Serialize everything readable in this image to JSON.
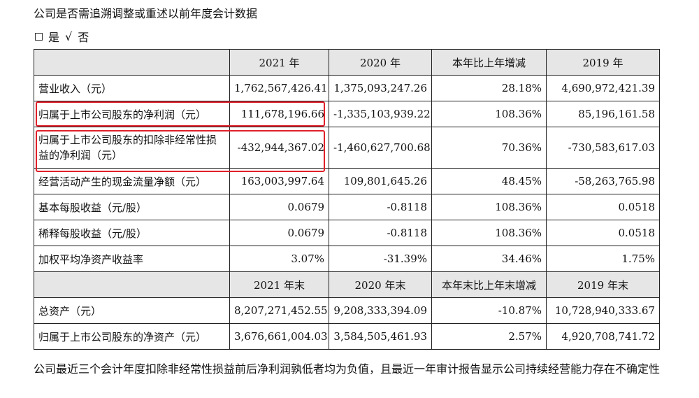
{
  "intro_text": "公司是否需追溯调整或重述以前年度会计数据",
  "choice": {
    "yes": "是",
    "check": "√",
    "no": "否"
  },
  "table": {
    "header1": [
      "",
      "2021 年",
      "2020 年",
      "本年比上年增减",
      "2019 年"
    ],
    "rows1": [
      [
        "营业收入（元）",
        "1,762,567,426.41",
        "1,375,093,247.26",
        "28.18%",
        "4,690,972,421.39"
      ],
      [
        "归属于上市公司股东的净利润（元）",
        "111,678,196.66",
        "-1,335,103,939.22",
        "108.36%",
        "85,196,161.58"
      ],
      [
        "归属于上市公司股东的扣除非经常性损益的净利润（元）",
        "-432,944,367.02",
        "-1,460,627,700.68",
        "70.36%",
        "-730,583,617.03"
      ],
      [
        "经营活动产生的现金流量净额（元）",
        "163,003,997.64",
        "109,801,645.26",
        "48.45%",
        "-58,263,765.98"
      ],
      [
        "基本每股收益（元/股）",
        "0.0679",
        "-0.8118",
        "108.36%",
        "0.0518"
      ],
      [
        "稀释每股收益（元/股）",
        "0.0679",
        "-0.8118",
        "108.36%",
        "0.0518"
      ],
      [
        "加权平均净资产收益率",
        "3.07%",
        "-31.39%",
        "34.46%",
        "1.75%"
      ]
    ],
    "header2": [
      "",
      "2021 年末",
      "2020 年末",
      "本年末比上年末增减",
      "2019 年末"
    ],
    "rows2": [
      [
        "总资产（元）",
        "8,207,271,452.55",
        "9,208,333,394.09",
        "-10.87%",
        "10,728,940,333.67"
      ],
      [
        "归属于上市公司股东的净资产（元）",
        "3,676,661,004.03",
        "3,584,505,461.93",
        "2.57%",
        "4,920,708,741.72"
      ]
    ]
  },
  "note": "公司最近三个会计年度扣除非经常性损益前后净利润孰低者均为负值，且最近一年审计报告显示公司持续经营能力存在不确定性",
  "highlight_color": "#e0202a"
}
